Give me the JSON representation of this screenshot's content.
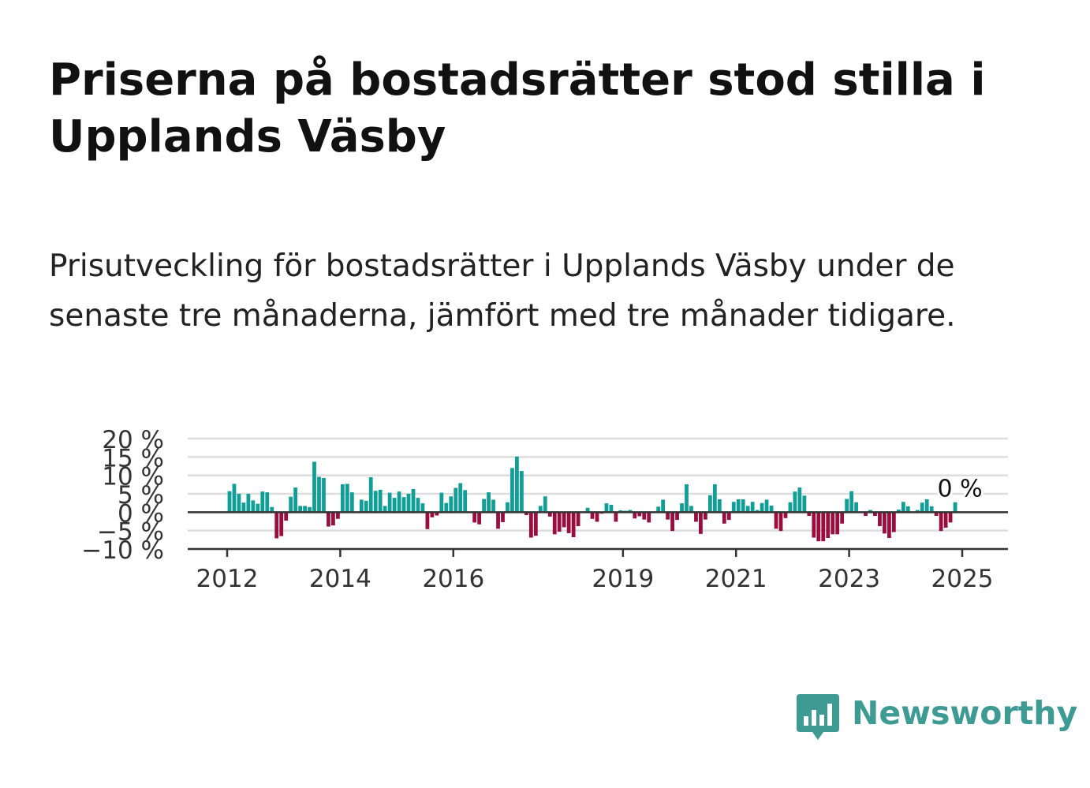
{
  "header": {
    "title": "Priserna på bostadsrätter stod stilla i Upplands Väsby",
    "subtitle": "Prisutveckling för bostadsrätter i Upplands Väsby under de senaste tre månaderna, jämfört med tre månader tidigare."
  },
  "brand": {
    "name": "Newsworthy",
    "color": "#3d9b93",
    "icon": "bar-chart-speech-bubble-icon"
  },
  "colors": {
    "positive": "#109e96",
    "negative": "#9b0d3c",
    "grid": "#dddddd",
    "axis": "#333333"
  },
  "chart_data": {
    "type": "bar",
    "ylim": [
      -10,
      20
    ],
    "yticks": [
      -10,
      -5,
      0,
      5,
      10,
      15,
      20
    ],
    "ytick_labels": [
      "−10 %",
      "−5 %",
      "0 %",
      "5 %",
      "10 %",
      "15 %",
      "20 %"
    ],
    "xticks": [
      {
        "value": 2012,
        "label": "2012"
      },
      {
        "value": 2014,
        "label": "2014"
      },
      {
        "value": 2016,
        "label": "2016"
      },
      {
        "value": 2019,
        "label": "2019"
      },
      {
        "value": 2021,
        "label": "2021"
      },
      {
        "value": 2023,
        "label": "2023"
      },
      {
        "value": 2025,
        "label": "2025"
      }
    ],
    "x_start": "2012-01",
    "frequency": "monthly",
    "grid": true,
    "annotation": {
      "label": "0 %"
    },
    "values": [
      5.7,
      7.7,
      5.0,
      2.6,
      5.0,
      3.2,
      2.3,
      5.6,
      5.4,
      1.4,
      -7.1,
      -6.5,
      -2.3,
      4.2,
      6.7,
      1.7,
      1.7,
      1.4,
      13.7,
      9.6,
      9.3,
      -3.9,
      -3.6,
      -1.8,
      7.6,
      7.7,
      5.4,
      0.0,
      3.4,
      3.1,
      9.5,
      5.8,
      6.1,
      1.7,
      5.3,
      3.9,
      5.6,
      4.1,
      5.0,
      6.3,
      3.9,
      2.4,
      -4.6,
      -1.4,
      -0.9,
      5.3,
      2.5,
      4.3,
      6.6,
      7.9,
      6.0,
      0.0,
      -2.8,
      -3.3,
      3.6,
      5.4,
      3.4,
      -4.5,
      -2.7,
      2.7,
      12.0,
      15.1,
      11.2,
      -0.8,
      -6.9,
      -6.4,
      1.7,
      4.3,
      -1.2,
      -6.0,
      -5.3,
      -4.1,
      -5.7,
      -6.8,
      -3.8,
      0.0,
      1.2,
      -1.8,
      -2.6,
      -0.4,
      2.4,
      2.0,
      -2.6,
      0.5,
      0.4,
      0.6,
      -1.7,
      -1.1,
      -2.0,
      -2.8,
      0.0,
      1.5,
      3.4,
      -2.0,
      -5.1,
      -2.1,
      2.4,
      7.6,
      1.7,
      -2.6,
      -5.9,
      -2.0,
      4.6,
      7.6,
      3.5,
      -3.1,
      -2.1,
      2.8,
      3.5,
      3.5,
      1.7,
      2.8,
      0.6,
      2.5,
      3.4,
      1.8,
      -4.5,
      -5.1,
      -1.6,
      2.7,
      5.6,
      6.7,
      4.5,
      -1.0,
      -6.9,
      -7.9,
      -7.9,
      -7.0,
      -6.0,
      -6.0,
      -3.1,
      3.6,
      5.7,
      2.7,
      0.0,
      -1.0,
      0.6,
      -1.0,
      -3.8,
      -5.8,
      -7.0,
      -5.4,
      0.7,
      2.8,
      1.6,
      0.0,
      0.6,
      2.6,
      3.5,
      1.6,
      -1.0,
      -5.1,
      -4.2,
      -2.8,
      2.7
    ]
  }
}
